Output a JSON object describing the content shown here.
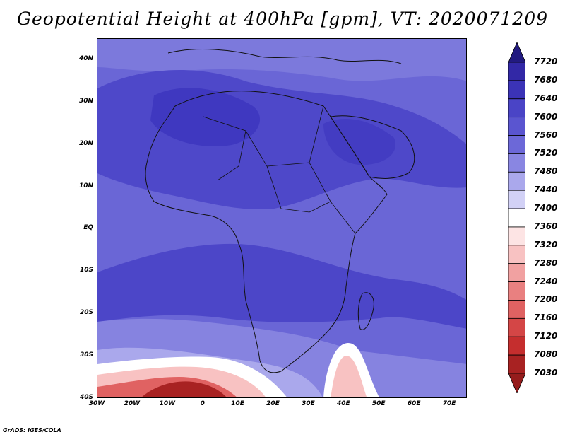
{
  "title": "Geopotential Height at 400hPa [gpm], VT: 2020071209",
  "credit": "GrADS: IGES/COLA",
  "map": {
    "lon_range": [
      -30,
      75
    ],
    "lat_range": [
      -40,
      45
    ],
    "y_ticks": [
      {
        "label": "40N",
        "lat": 40
      },
      {
        "label": "30N",
        "lat": 30
      },
      {
        "label": "20N",
        "lat": 20
      },
      {
        "label": "10N",
        "lat": 10
      },
      {
        "label": "EQ",
        "lat": 0
      },
      {
        "label": "10S",
        "lat": -10
      },
      {
        "label": "20S",
        "lat": -20
      },
      {
        "label": "30S",
        "lat": -30
      },
      {
        "label": "40S",
        "lat": -40
      }
    ],
    "x_ticks": [
      {
        "label": "30W",
        "lon": -30
      },
      {
        "label": "20W",
        "lon": -20
      },
      {
        "label": "10W",
        "lon": -10
      },
      {
        "label": "0",
        "lon": 0
      },
      {
        "label": "10E",
        "lon": 10
      },
      {
        "label": "20E",
        "lon": 20
      },
      {
        "label": "30E",
        "lon": 30
      },
      {
        "label": "40E",
        "lon": 40
      },
      {
        "label": "50E",
        "lon": 50
      },
      {
        "label": "60E",
        "lon": 60
      },
      {
        "label": "70E",
        "lon": 70
      }
    ]
  },
  "colorbar": {
    "levels": [
      {
        "label": "7720",
        "color": "#2a1f8f"
      },
      {
        "label": "7680",
        "color": "#3228a6"
      },
      {
        "label": "7640",
        "color": "#3b33b7"
      },
      {
        "label": "7600",
        "color": "#4a44c6"
      },
      {
        "label": "7560",
        "color": "#5a55d0"
      },
      {
        "label": "7520",
        "color": "#6c68d8"
      },
      {
        "label": "7480",
        "color": "#8986e2"
      },
      {
        "label": "7440",
        "color": "#aaa8ec"
      },
      {
        "label": "7400",
        "color": "#d2d1f6"
      },
      {
        "label": "7360",
        "color": "#ffffff"
      },
      {
        "label": "7320",
        "color": "#fde4e4"
      },
      {
        "label": "7280",
        "color": "#f8c2c2"
      },
      {
        "label": "7240",
        "color": "#f1a1a1"
      },
      {
        "label": "7200",
        "color": "#e98080"
      },
      {
        "label": "7160",
        "color": "#e06262"
      },
      {
        "label": "7120",
        "color": "#d44646"
      },
      {
        "label": "7080",
        "color": "#c52e2e"
      },
      {
        "label": "7030",
        "color": "#a82222"
      }
    ],
    "top_arrow_color": "#221a80",
    "bottom_arrow_color": "#951c1c"
  }
}
